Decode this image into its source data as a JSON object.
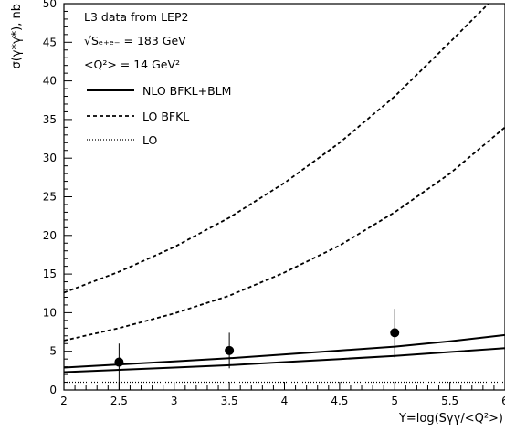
{
  "chart_data": {
    "type": "line",
    "xlabel": "Y=log(Sγγ/<Q²>)",
    "ylabel": "σ(γ*γ*), nb",
    "xlim": [
      2,
      6
    ],
    "ylim": [
      0,
      50
    ],
    "x_ticks": [
      "2",
      "2.5",
      "3",
      "3.5",
      "4",
      "4.5",
      "5",
      "5.5",
      "6"
    ],
    "y_ticks": [
      "0",
      "5",
      "10",
      "15",
      "20",
      "25",
      "30",
      "35",
      "40",
      "45",
      "50"
    ],
    "annotations": [
      "L3 data from LEP2",
      "√Sₑ₊ₑ₋ = 183 GeV",
      "<Q²> = 14 GeV²"
    ],
    "legend": [
      {
        "label": "NLO BFKL+BLM",
        "style": "solid"
      },
      {
        "label": "LO BFKL",
        "style": "dashed"
      },
      {
        "label": "LO",
        "style": "dotted"
      }
    ],
    "series": [
      {
        "name": "NLO BFKL+BLM",
        "style": "solid",
        "x": [
          2,
          2.5,
          3,
          3.5,
          4,
          4.5,
          5,
          5.5,
          6
        ],
        "y": [
          2.9,
          3.3,
          3.7,
          4.1,
          4.6,
          5.1,
          5.6,
          6.3,
          7.1
        ]
      },
      {
        "name": "NLO BFKL+BLM",
        "style": "solid",
        "x": [
          2,
          2.5,
          3,
          3.5,
          4,
          4.5,
          5,
          5.5,
          6
        ],
        "y": [
          2.3,
          2.6,
          2.9,
          3.2,
          3.6,
          4.0,
          4.4,
          4.9,
          5.4
        ]
      },
      {
        "name": "LO BFKL",
        "style": "dashed",
        "x": [
          2,
          2.5,
          3,
          3.5,
          4,
          4.5,
          5,
          5.5,
          5.85,
          6.0
        ],
        "y": [
          12.6,
          15.3,
          18.5,
          22.3,
          26.8,
          32.0,
          38.0,
          45.0,
          50.0,
          52.5
        ]
      },
      {
        "name": "LO BFKL",
        "style": "dashed",
        "x": [
          2,
          2.5,
          3,
          3.5,
          4,
          4.5,
          5,
          5.5,
          6
        ],
        "y": [
          6.4,
          8.0,
          9.9,
          12.2,
          15.2,
          18.7,
          23.0,
          28.0,
          34.0
        ]
      },
      {
        "name": "LO",
        "style": "dotted",
        "x": [
          2,
          6
        ],
        "y": [
          1.0,
          1.0
        ]
      }
    ],
    "points": [
      {
        "x": 2.5,
        "y": 3.6,
        "err_low": 3.6,
        "err_high": 2.4
      },
      {
        "x": 3.5,
        "y": 5.1,
        "err_low": 2.3,
        "err_high": 2.3
      },
      {
        "x": 5.0,
        "y": 7.4,
        "err_low": 3.2,
        "err_high": 3.1
      }
    ]
  }
}
